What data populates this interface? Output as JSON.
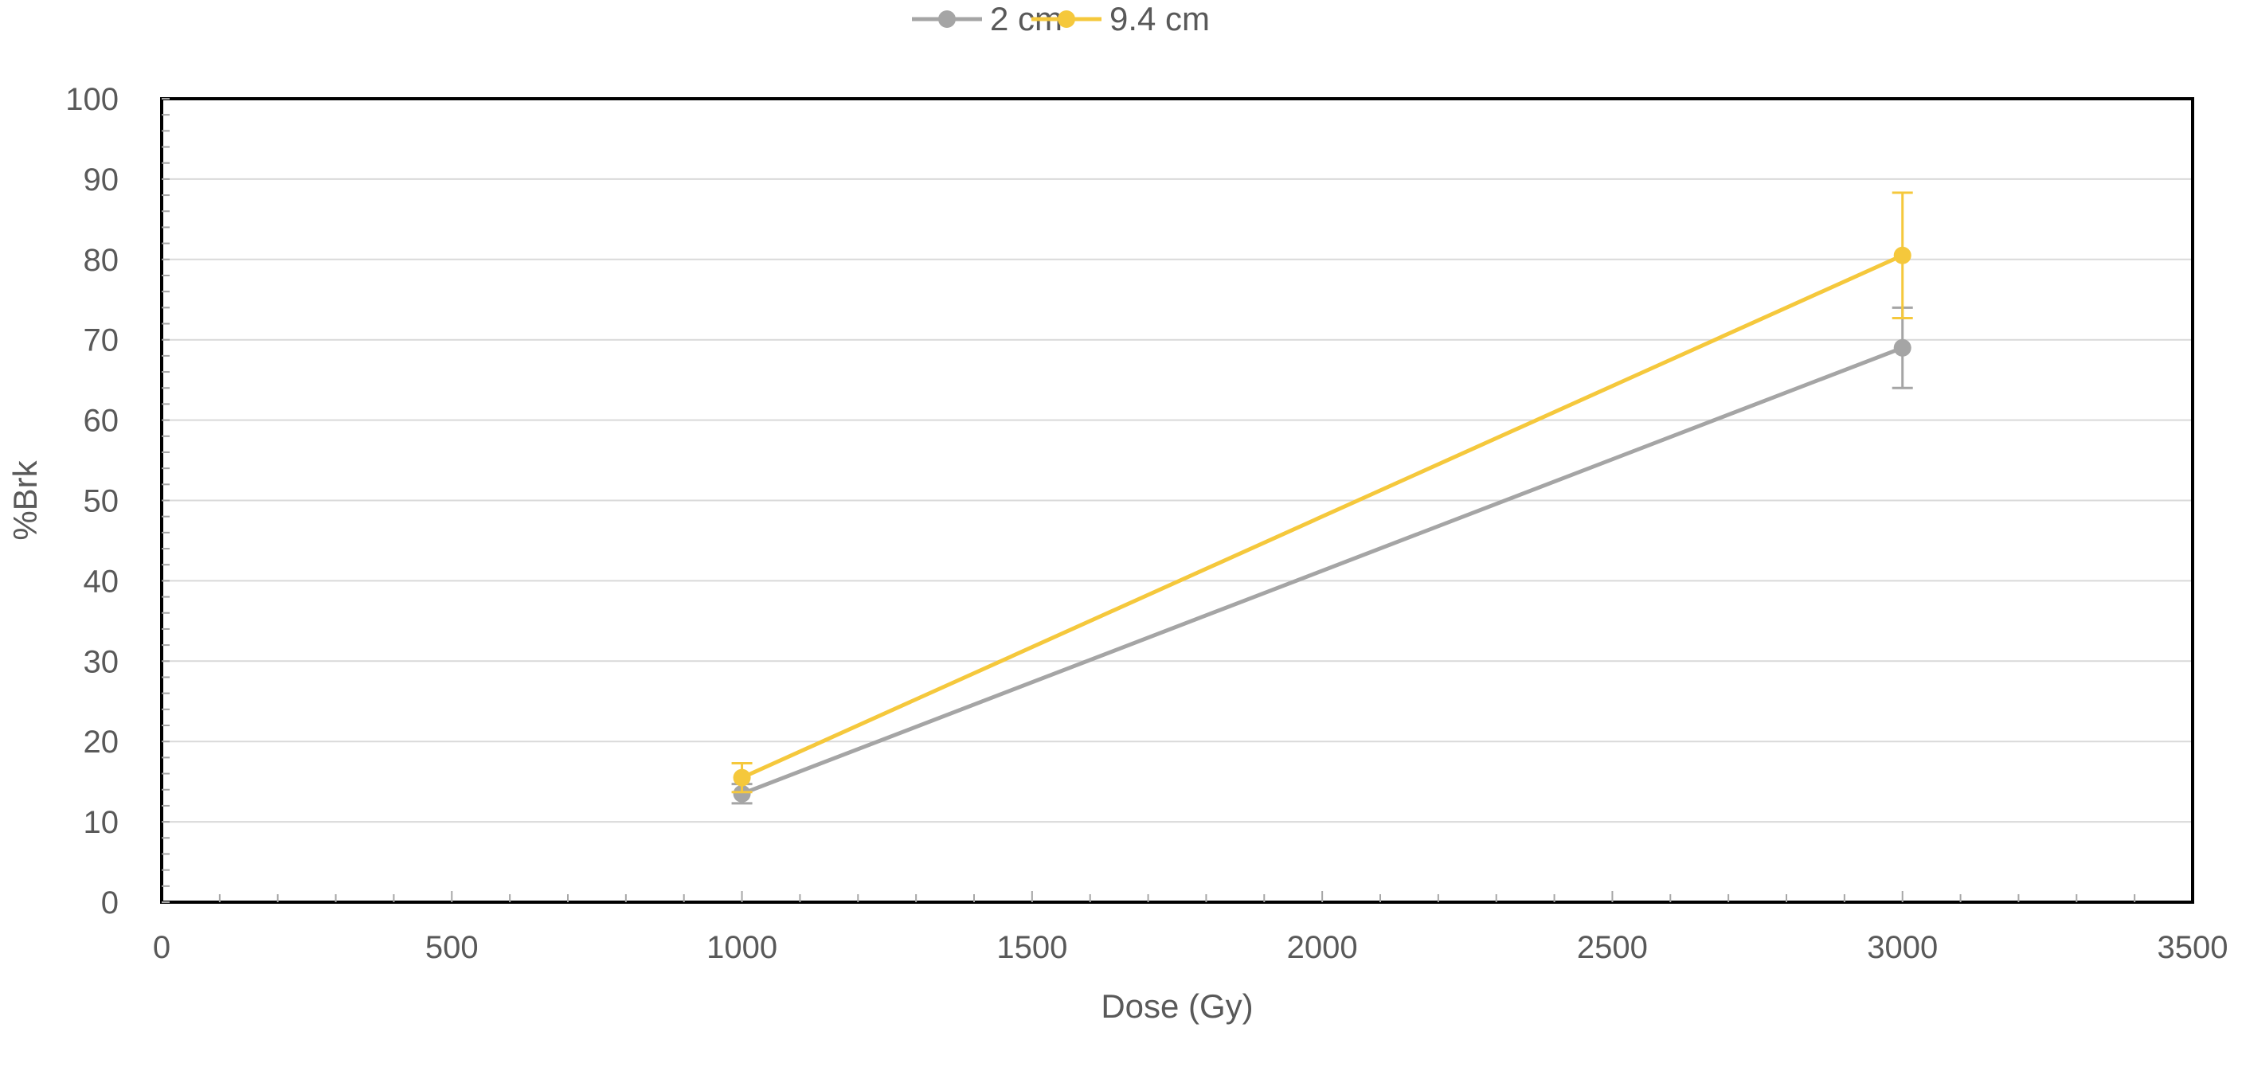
{
  "chart_data": {
    "type": "line",
    "title": "",
    "xlabel": "Dose (Gy)",
    "ylabel": "%Brk",
    "xlim": [
      0,
      3500
    ],
    "ylim": [
      0,
      100
    ],
    "x_ticks": [
      0,
      500,
      1000,
      1500,
      2000,
      2500,
      3000,
      3500
    ],
    "y_ticks": [
      0,
      10,
      20,
      30,
      40,
      50,
      60,
      70,
      80,
      90,
      100
    ],
    "x_tick_labels": [
      "0",
      "500",
      "1000",
      "1500",
      "2000",
      "2500",
      "3000",
      "3500"
    ],
    "y_tick_labels": [
      "0",
      "10",
      "20",
      "30",
      "40",
      "50",
      "60",
      "70",
      "80",
      "90",
      "100"
    ],
    "grid": {
      "horizontal": true,
      "vertical": false
    },
    "legend_position": "top-center",
    "series": [
      {
        "name": "2 cm",
        "color": "#a5a5a5",
        "x": [
          1000,
          3000
        ],
        "y": [
          13.5,
          69
        ],
        "error": [
          1.2,
          5
        ]
      },
      {
        "name": "9.4 cm",
        "color": "#f5c83c",
        "x": [
          1000,
          3000
        ],
        "y": [
          15.5,
          80.5
        ],
        "error": [
          1.8,
          7.8
        ]
      }
    ]
  }
}
